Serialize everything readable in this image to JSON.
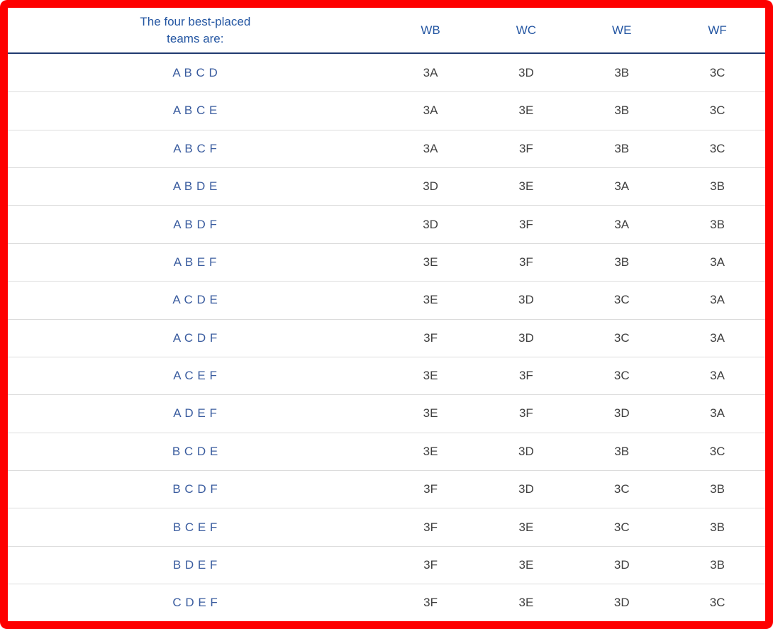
{
  "colors": {
    "frame-red": "#fe0000",
    "header-blue": "#2456A2",
    "teams-blue": "#3A5C9F",
    "data-gray": "#3F3F3F",
    "header-rule-navy": "#203A70",
    "row-divider": "#DCDCDC",
    "background": "#FFFFFF"
  },
  "table": {
    "caption": "The four best-placed teams are:",
    "columns": [
      "WB",
      "WC",
      "WE",
      "WF"
    ],
    "rows": [
      {
        "teams": "A B C D",
        "values": [
          "3A",
          "3D",
          "3B",
          "3C"
        ]
      },
      {
        "teams": "A B C E",
        "values": [
          "3A",
          "3E",
          "3B",
          "3C"
        ]
      },
      {
        "teams": "A B C F",
        "values": [
          "3A",
          "3F",
          "3B",
          "3C"
        ]
      },
      {
        "teams": "A B D E",
        "values": [
          "3D",
          "3E",
          "3A",
          "3B"
        ]
      },
      {
        "teams": "A B D F",
        "values": [
          "3D",
          "3F",
          "3A",
          "3B"
        ]
      },
      {
        "teams": "A B E F",
        "values": [
          "3E",
          "3F",
          "3B",
          "3A"
        ]
      },
      {
        "teams": "A C D E",
        "values": [
          "3E",
          "3D",
          "3C",
          "3A"
        ]
      },
      {
        "teams": "A C D F",
        "values": [
          "3F",
          "3D",
          "3C",
          "3A"
        ]
      },
      {
        "teams": "A C E F",
        "values": [
          "3E",
          "3F",
          "3C",
          "3A"
        ]
      },
      {
        "teams": "A D E F",
        "values": [
          "3E",
          "3F",
          "3D",
          "3A"
        ]
      },
      {
        "teams": "B C D E",
        "values": [
          "3E",
          "3D",
          "3B",
          "3C"
        ]
      },
      {
        "teams": "B C D F",
        "values": [
          "3F",
          "3D",
          "3C",
          "3B"
        ]
      },
      {
        "teams": "B C E F",
        "values": [
          "3F",
          "3E",
          "3C",
          "3B"
        ]
      },
      {
        "teams": "B D E F",
        "values": [
          "3F",
          "3E",
          "3D",
          "3B"
        ]
      },
      {
        "teams": "C D E F",
        "values": [
          "3F",
          "3E",
          "3D",
          "3C"
        ]
      }
    ]
  }
}
